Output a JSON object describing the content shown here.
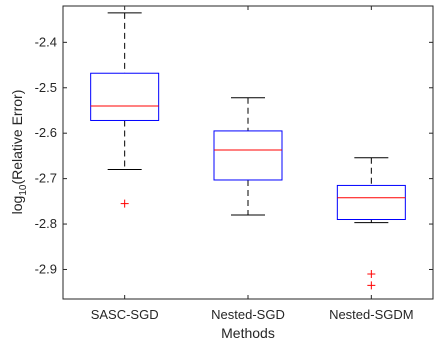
{
  "chart_data": {
    "type": "box",
    "xlabel": "Methods",
    "ylabel": {
      "prefix": "log",
      "subscript": "10",
      "suffix": "(Relative Error)"
    },
    "ylim": [
      -2.965,
      -2.32
    ],
    "yticks": [
      -2.9,
      -2.8,
      -2.7,
      -2.6,
      -2.5,
      -2.4
    ],
    "ytick_labels": [
      "-2.9",
      "-2.8",
      "-2.7",
      "-2.6",
      "-2.5",
      "-2.4"
    ],
    "grid": false,
    "categories": [
      "SASC-SGD",
      "Nested-SGD",
      "Nested-SGDM"
    ],
    "boxes": [
      {
        "label": "SASC-SGD",
        "whisker_low": -2.68,
        "q1": -2.572,
        "median": -2.54,
        "q3": -2.468,
        "whisker_high": -2.335,
        "outliers": [
          -2.755
        ]
      },
      {
        "label": "Nested-SGD",
        "whisker_low": -2.78,
        "q1": -2.703,
        "median": -2.637,
        "q3": -2.595,
        "whisker_high": -2.522,
        "outliers": []
      },
      {
        "label": "Nested-SGDM",
        "whisker_low": -2.797,
        "q1": -2.79,
        "median": -2.742,
        "q3": -2.715,
        "whisker_high": -2.654,
        "outliers": [
          -2.91,
          -2.935
        ]
      }
    ],
    "colors": {
      "box": "#0000ff",
      "median": "#ff0000",
      "whisker": "#000000",
      "outlier": "#ff0000",
      "axis": "#262626"
    }
  }
}
